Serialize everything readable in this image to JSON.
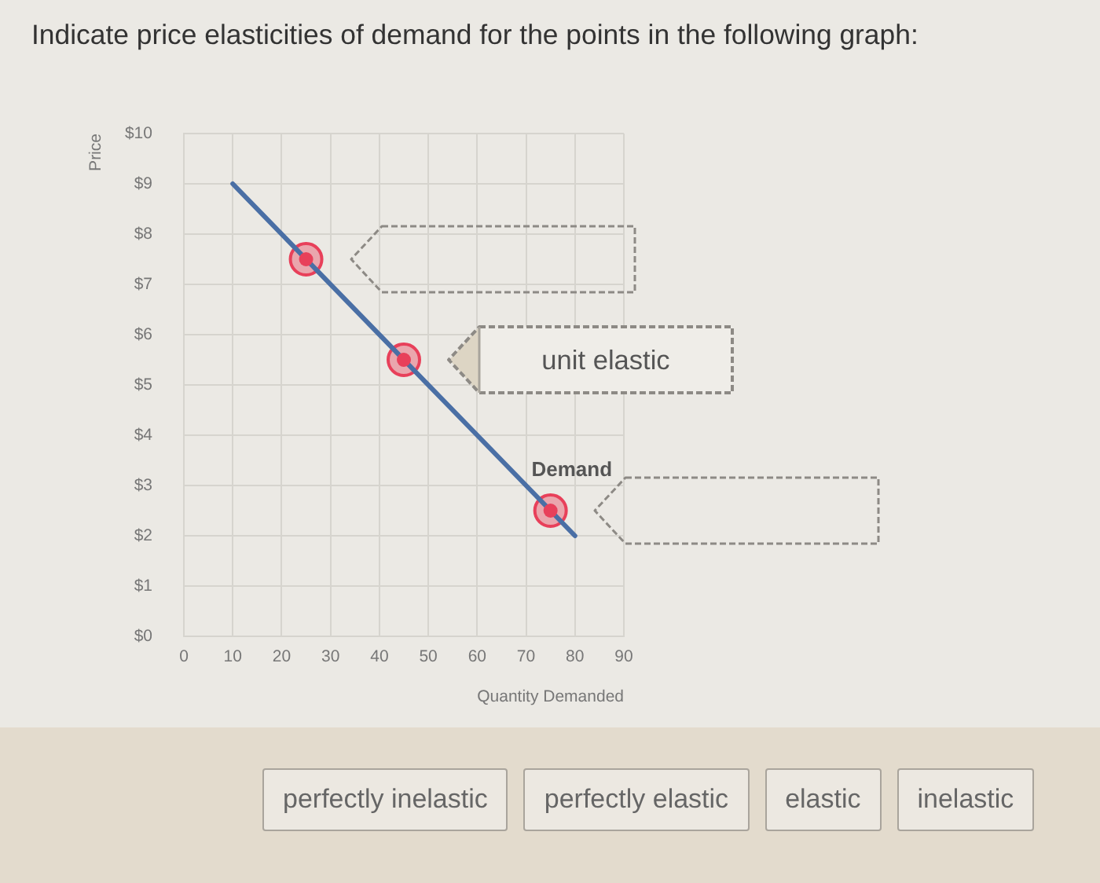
{
  "chart_data": {
    "type": "line",
    "title": "Indicate price elasticities of demand for the points in the following graph:",
    "xlabel": "Quantity Demanded",
    "ylabel": "Price",
    "xlim": [
      0,
      90
    ],
    "xticks": [
      0,
      10,
      20,
      30,
      40,
      50,
      60,
      70,
      80,
      90
    ],
    "ylim": [
      0,
      10
    ],
    "yticks": [
      {
        "value": 0,
        "label": "$0"
      },
      {
        "value": 1,
        "label": "$1"
      },
      {
        "value": 2,
        "label": "$2"
      },
      {
        "value": 3,
        "label": "$3"
      },
      {
        "value": 4,
        "label": "$4"
      },
      {
        "value": 5,
        "label": "$5"
      },
      {
        "value": 6,
        "label": "$6"
      },
      {
        "value": 7,
        "label": "$7"
      },
      {
        "value": 8,
        "label": "$8"
      },
      {
        "value": 9,
        "label": "$9"
      },
      {
        "value": 10,
        "label": "$10"
      }
    ],
    "grid": true,
    "series": [
      {
        "name": "Demand",
        "type": "line",
        "color": "#4a6fa5",
        "x": [
          10,
          80
        ],
        "values": [
          9,
          2
        ],
        "marker": "none"
      },
      {
        "type": "scatter",
        "color": "#e8405a",
        "x": [
          25,
          45,
          75
        ],
        "values": [
          7.5,
          5.5,
          2.5
        ],
        "marker": "circle"
      }
    ],
    "annotations": [
      "unit elastic",
      "perfectly inelastic",
      "perfectly elastic",
      "elastic",
      "inelastic"
    ]
  }
}
